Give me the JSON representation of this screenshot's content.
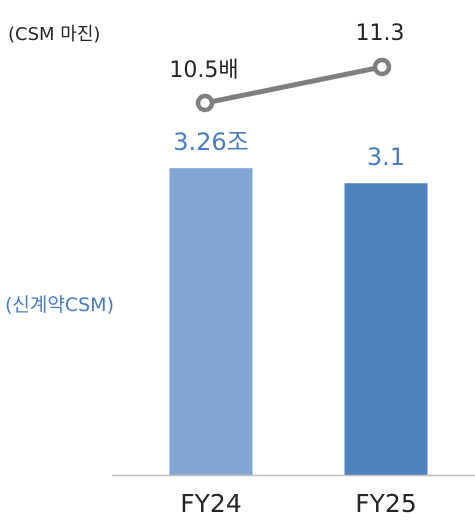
{
  "chart_data": {
    "type": "bar",
    "categories": [
      "FY24",
      "FY25"
    ],
    "series": [
      {
        "name": "(신계약CSM)",
        "values": [
          3.26,
          3.1
        ],
        "data_labels": [
          "3.26조",
          "3.1"
        ],
        "colors": [
          "#7fa5d0",
          "#4f81bd"
        ],
        "label_color": "#4a7cc0"
      }
    ],
    "line_series": {
      "name": "(CSM 마진)",
      "values": [
        10.5,
        11.3
      ],
      "data_labels": [
        "10.5배",
        "11.3"
      ],
      "color": "#7f7f7f"
    },
    "bar_ylim": [
      0,
      3.4
    ],
    "line_ylim": [
      0,
      14
    ],
    "title": "",
    "xlabel": "",
    "ylabel": "",
    "grid": false,
    "axis_color": "#bfbfbf",
    "text_color": "#262626"
  }
}
